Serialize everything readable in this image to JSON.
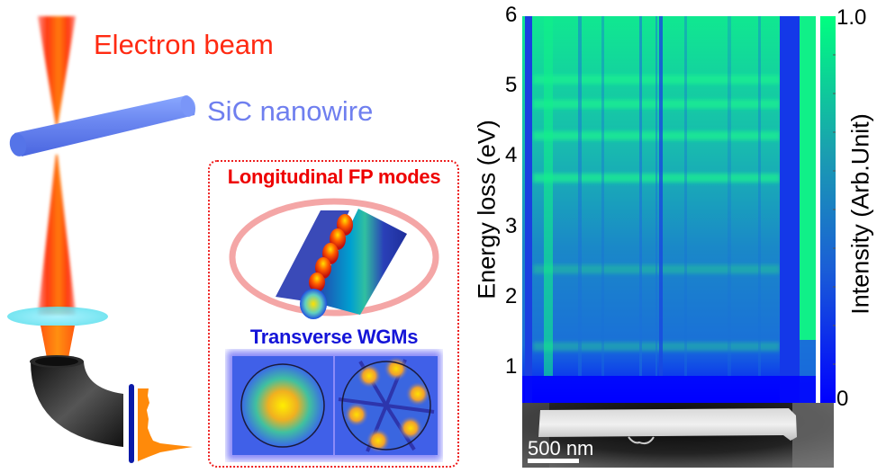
{
  "schematic": {
    "electron_beam_label": "Electron beam",
    "nanowire_label": "SiC nanowire",
    "beam_icon": "electron-beam-cone",
    "nanowire_icon": "nanowire-cylinder",
    "lens_icon": "aperture-disk",
    "spectrometer_icon": "bent-spectrometer-tube",
    "detector_icon": "detector-plate",
    "spectrum_icon": "eels-spectrum-trace",
    "colors": {
      "beam": "#ff5a1a",
      "nanowire": "#6a86f0",
      "lens": "#7fe6f2",
      "detector": "#0b1aa8",
      "spectrum": "#ff8a0a",
      "box_border": "#ee1f1f"
    }
  },
  "modes_panel": {
    "longitudinal_title": "Longitudinal FP modes",
    "transverse_title": "Transverse WGMs",
    "longitudinal_figure": "fp-mode-field-render",
    "transverse_figures": [
      "wgm-fundamental-mode",
      "wgm-six-lobe-mode"
    ]
  },
  "chart_data": {
    "type": "heatmap",
    "title": "",
    "xlabel": "",
    "ylabel": "Energy loss (eV)",
    "y_ticks": [
      "1",
      "2",
      "3",
      "4",
      "5",
      "6"
    ],
    "ylim": [
      0.5,
      6
    ],
    "colorbar": {
      "label": "Intensity (Arb.Unit)",
      "ticks": [
        "0",
        "1.0"
      ],
      "range": [
        0,
        1.0
      ],
      "colormap": [
        "#0000ff",
        "#1a5fd6",
        "#1a9fb0",
        "#00ff80"
      ]
    },
    "bright_bands_eV": [
      1.3,
      2.4,
      3.7,
      4.3,
      4.75,
      5.1
    ],
    "description": "Spatially resolved EELS line scan across a SiC nanowire; horizontal axis is position along the wire, intensity shows Fabry-Perot resonance bands"
  },
  "sem_image": {
    "scalebar_label": "500 nm"
  }
}
